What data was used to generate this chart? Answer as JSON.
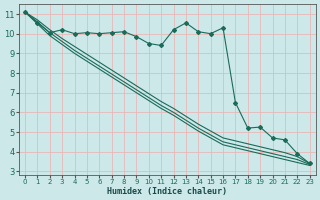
{
  "xlabel": "Humidex (Indice chaleur)",
  "bg_color": "#cce8e8",
  "grid_color": "#e8b8b8",
  "line_color": "#1a6b5a",
  "xlim": [
    -0.5,
    23.5
  ],
  "ylim": [
    2.8,
    11.5
  ],
  "yticks": [
    3,
    4,
    5,
    6,
    7,
    8,
    9,
    10,
    11
  ],
  "xticks": [
    0,
    1,
    2,
    3,
    4,
    5,
    6,
    7,
    8,
    9,
    10,
    11,
    12,
    13,
    14,
    15,
    16,
    17,
    18,
    19,
    20,
    21,
    22,
    23
  ],
  "series1_x": [
    0,
    1,
    2,
    3,
    4,
    5,
    6,
    7,
    8,
    9,
    10,
    11,
    12,
    13,
    14,
    15,
    16,
    17,
    18,
    19,
    20,
    21,
    22,
    23
  ],
  "series1_y": [
    11.1,
    10.55,
    10.05,
    10.2,
    10.0,
    10.05,
    10.0,
    10.05,
    10.1,
    9.85,
    9.5,
    9.4,
    10.2,
    10.55,
    10.1,
    10.0,
    10.3,
    6.5,
    5.2,
    5.25,
    4.7,
    4.6,
    3.9,
    3.4
  ],
  "series2_x": [
    0,
    1,
    2,
    3,
    4,
    5,
    6,
    7,
    8,
    9,
    10,
    11,
    12,
    13,
    14,
    15,
    16,
    17,
    18,
    19,
    20,
    21,
    22,
    23
  ],
  "series2_y": [
    11.1,
    10.7,
    10.2,
    9.75,
    9.35,
    8.95,
    8.55,
    8.15,
    7.75,
    7.35,
    6.95,
    6.55,
    6.2,
    5.8,
    5.4,
    5.05,
    4.7,
    4.55,
    4.4,
    4.25,
    4.1,
    3.95,
    3.75,
    3.4
  ],
  "series3_x": [
    0,
    1,
    2,
    3,
    4,
    5,
    6,
    7,
    8,
    9,
    10,
    11,
    12,
    13,
    14,
    15,
    16,
    17,
    18,
    19,
    20,
    21,
    22,
    23
  ],
  "series3_y": [
    11.1,
    10.6,
    10.05,
    9.6,
    9.15,
    8.75,
    8.35,
    7.95,
    7.55,
    7.15,
    6.75,
    6.35,
    6.0,
    5.6,
    5.2,
    4.85,
    4.5,
    4.35,
    4.2,
    4.05,
    3.9,
    3.75,
    3.6,
    3.35
  ],
  "series4_x": [
    0,
    1,
    2,
    3,
    4,
    5,
    6,
    7,
    8,
    9,
    10,
    11,
    12,
    13,
    14,
    15,
    16,
    17,
    18,
    19,
    20,
    21,
    22,
    23
  ],
  "series4_y": [
    11.1,
    10.5,
    9.9,
    9.45,
    9.0,
    8.6,
    8.2,
    7.8,
    7.4,
    7.0,
    6.6,
    6.2,
    5.85,
    5.45,
    5.05,
    4.7,
    4.35,
    4.2,
    4.05,
    3.9,
    3.75,
    3.6,
    3.45,
    3.3
  ]
}
